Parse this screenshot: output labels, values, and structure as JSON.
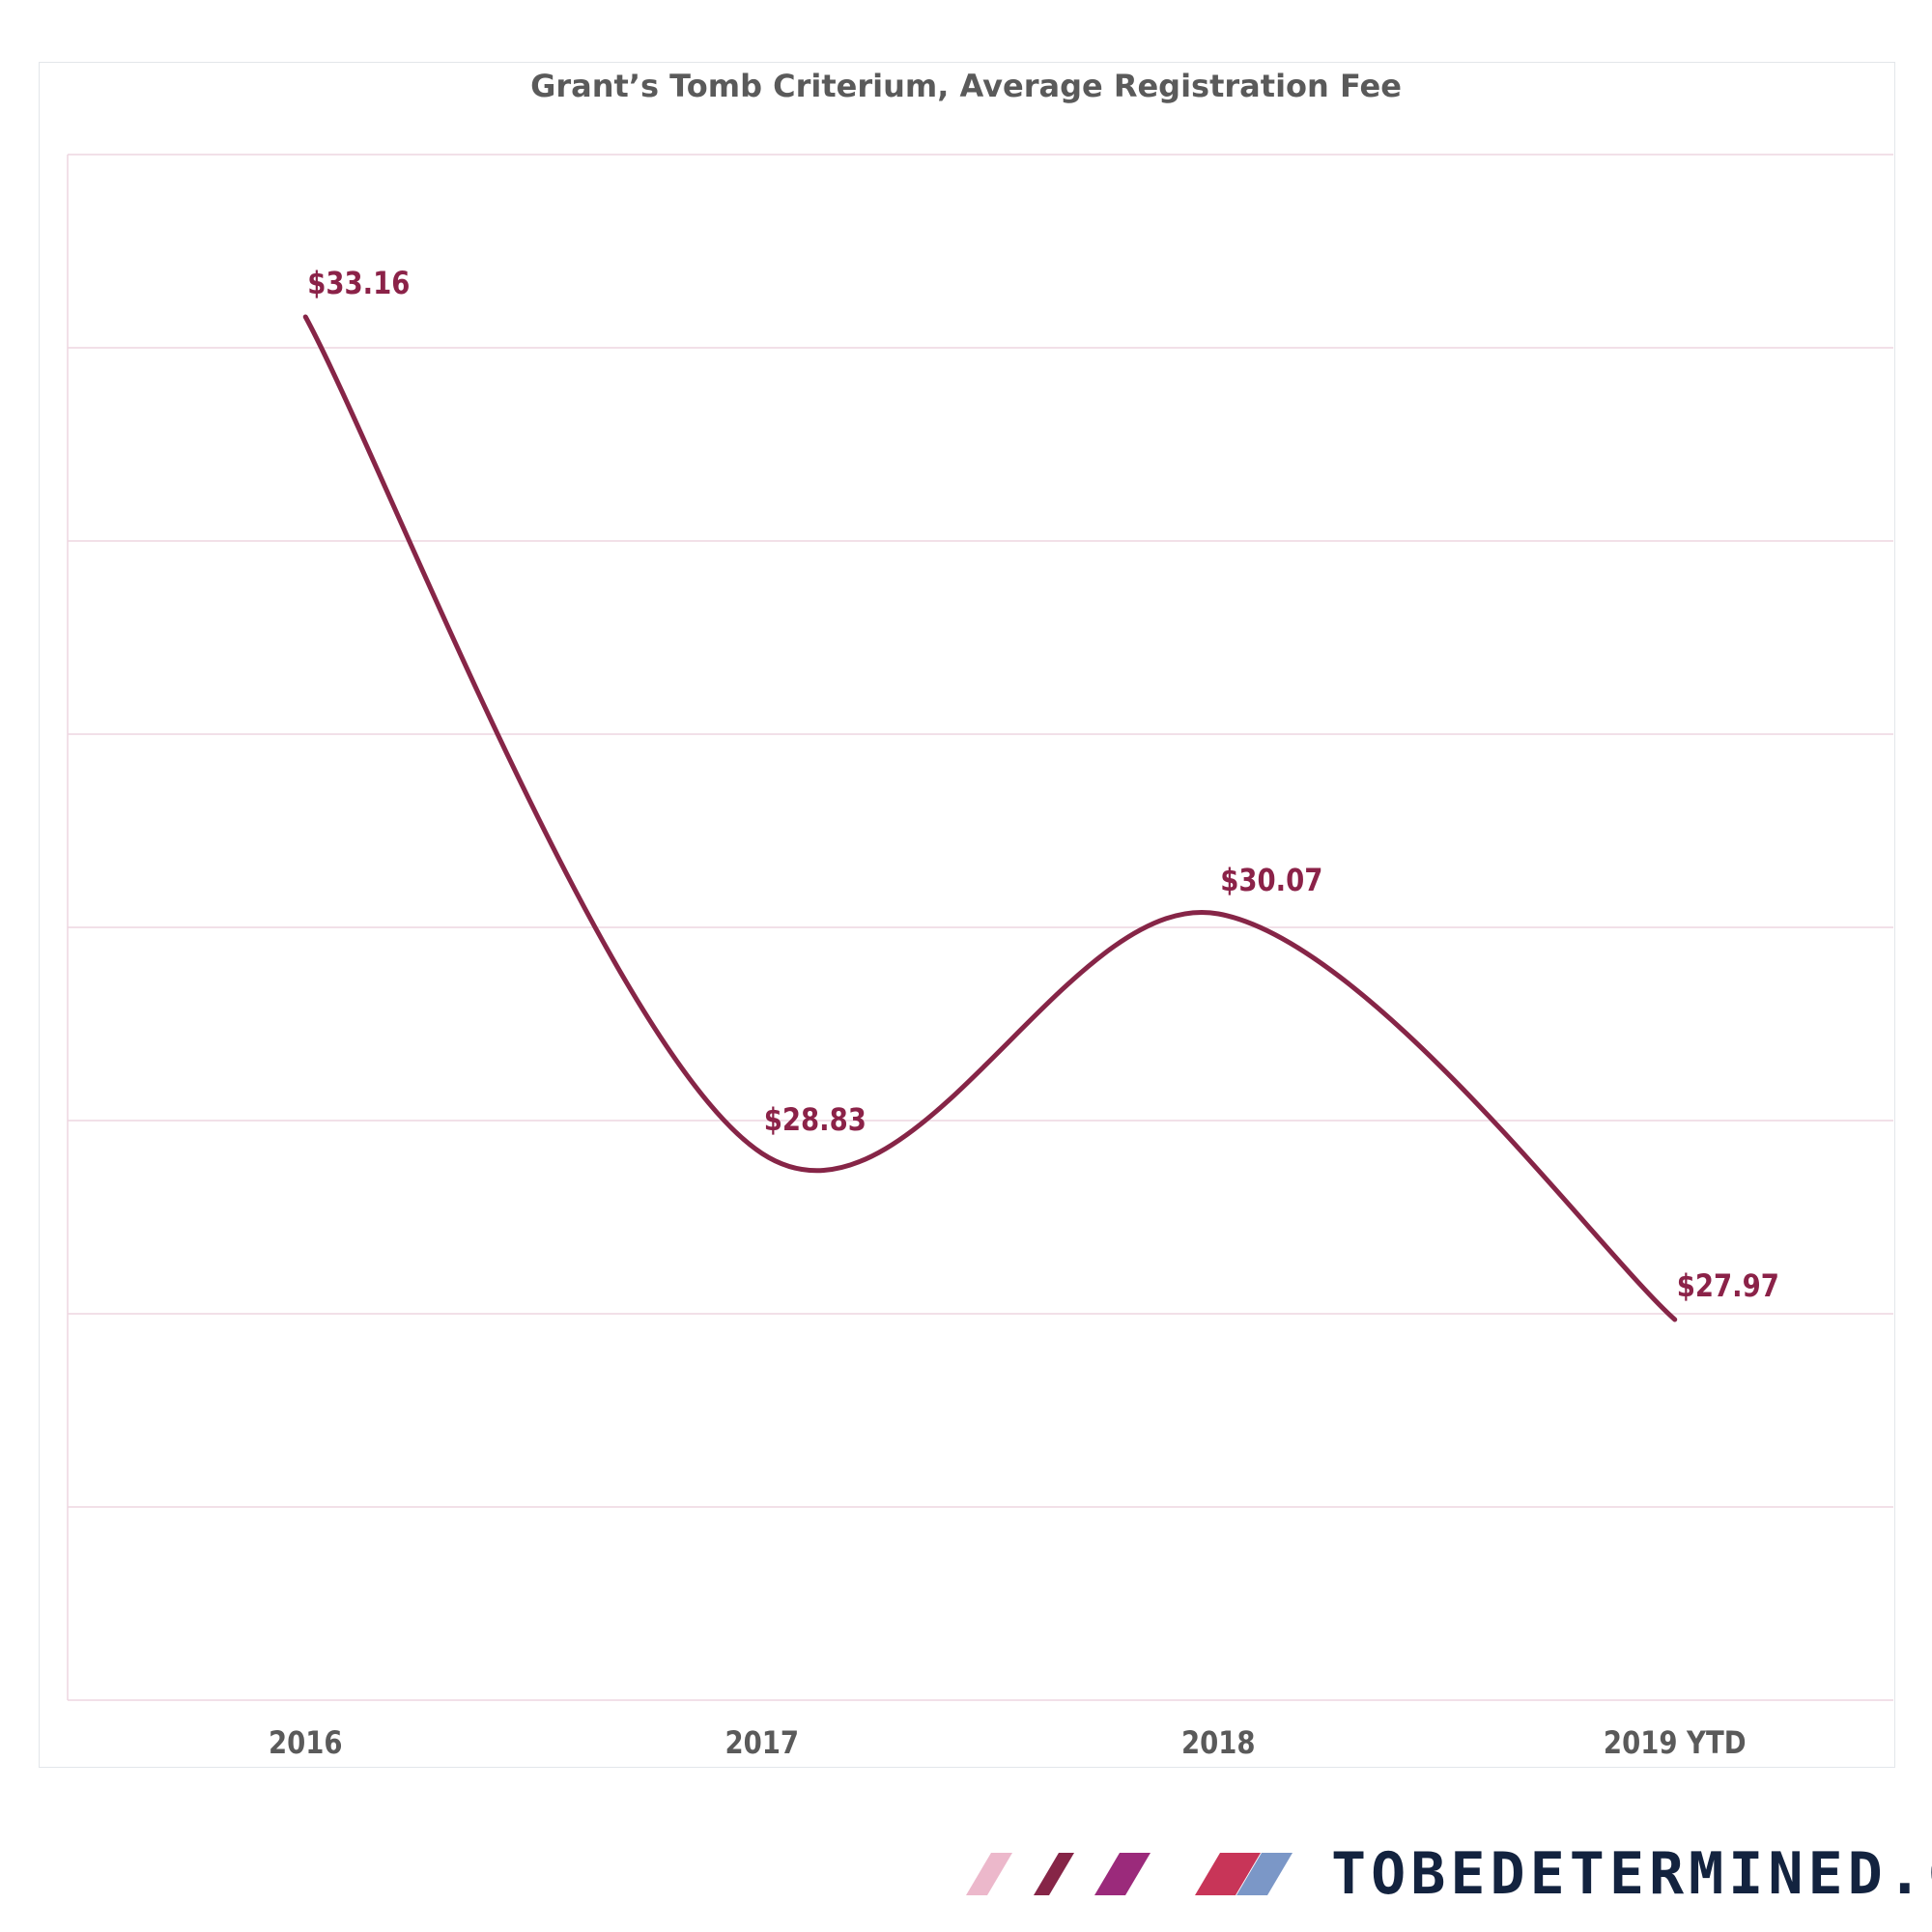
{
  "chart_data": {
    "type": "line",
    "title": "Grant’s Tomb Criterium, Average Registration Fee",
    "categories": [
      "2016",
      "2017",
      "2018",
      "2019 YTD"
    ],
    "series": [
      {
        "values": [
          33.16,
          28.83,
          30.07,
          27.97
        ],
        "labels": [
          "$33.16",
          "$28.83",
          "$30.07",
          "$27.97"
        ]
      }
    ],
    "ylim": [
      26.0,
      34.0
    ],
    "xlabel": "",
    "ylabel": "",
    "grid": true,
    "smooth": true,
    "colors": {
      "line": "#862547",
      "label": "#8b2248",
      "tick": "#5a5a5a",
      "grid": "#eed6e1",
      "frame": "#e3e6ea"
    }
  },
  "branding": {
    "text": "TOBEDETERMINED.CC",
    "stripe_colors": [
      "#ecb8cb",
      "#862547",
      "#9b2a7b",
      "#c83558",
      "#7b97c7"
    ],
    "text_color": "#13233f"
  }
}
